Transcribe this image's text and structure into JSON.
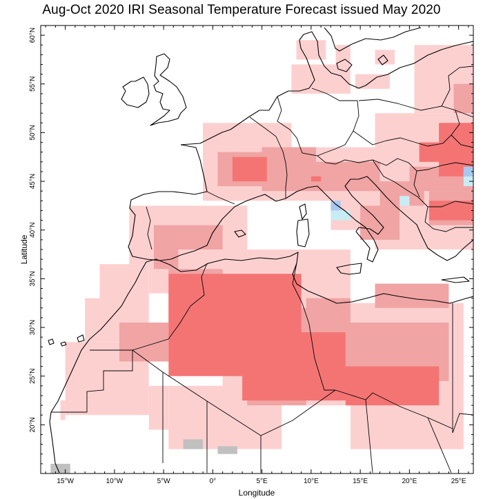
{
  "title": "Aug-Oct 2020 IRI Seasonal Temperature Forecast issued May 2020",
  "axes": {
    "xlabel": "Longitude",
    "ylabel": "Latitude",
    "xlim": [
      -17.5,
      26.5
    ],
    "ylim": [
      15,
      61
    ],
    "xticks": [
      {
        "value": -15,
        "label": "15°W"
      },
      {
        "value": -10,
        "label": "10°W"
      },
      {
        "value": -5,
        "label": "5°W"
      },
      {
        "value": 0,
        "label": "0°"
      },
      {
        "value": 5,
        "label": "5°E"
      },
      {
        "value": 10,
        "label": "10°E"
      },
      {
        "value": 15,
        "label": "15°E"
      },
      {
        "value": 20,
        "label": "20°E"
      },
      {
        "value": 25,
        "label": "25°E"
      }
    ],
    "yticks": [
      {
        "value": 20,
        "label": "20°N"
      },
      {
        "value": 25,
        "label": "25°N"
      },
      {
        "value": 30,
        "label": "30°N"
      },
      {
        "value": 35,
        "label": "35°N"
      },
      {
        "value": 40,
        "label": "40°N"
      },
      {
        "value": 45,
        "label": "45°N"
      },
      {
        "value": 50,
        "label": "50°N"
      },
      {
        "value": 55,
        "label": "55°N"
      },
      {
        "value": 60,
        "label": "60°N"
      }
    ]
  },
  "colors": {
    "above_low": "#fdd0d0",
    "above_mid": "#f0a4a4",
    "above_high": "#f47474",
    "below_low": "#c8ecf4",
    "below_mid": "#a8c8f0",
    "dry_mask": "#c0c0c0",
    "coast": "#000000"
  },
  "layers": [
    {
      "category": "above_low",
      "cells": [
        [
          -6.5,
          1,
          33.5,
          38
        ],
        [
          -11.5,
          -6.5,
          28.5,
          36.5
        ],
        [
          -13,
          -11.5,
          28.5,
          33
        ],
        [
          -15,
          -6.5,
          21,
          28.5
        ],
        [
          -15.5,
          -15,
          20.5,
          22.5
        ],
        [
          -6.5,
          -4.5,
          19.5,
          24
        ],
        [
          -4.5,
          7,
          17.5,
          24
        ],
        [
          1,
          14,
          22,
          38
        ],
        [
          14,
          25.5,
          17.5,
          32.5
        ],
        [
          -8.5,
          3.5,
          36.5,
          42.5
        ],
        [
          -1,
          8,
          43,
          51
        ],
        [
          8,
          17.5,
          43,
          48.5
        ],
        [
          12,
          20,
          40,
          46.5
        ],
        [
          16.5,
          26.5,
          38,
          52
        ],
        [
          20.5,
          26.5,
          52,
          59
        ],
        [
          14.5,
          18,
          54.5,
          56
        ],
        [
          8,
          14,
          54,
          57
        ],
        [
          8.5,
          11.5,
          57.5,
          59.5
        ],
        [
          12.5,
          14,
          57,
          59
        ],
        [
          16.5,
          18.5,
          57,
          58.5
        ],
        [
          1,
          5.5,
          48.5,
          50.5
        ]
      ]
    },
    {
      "category": "above_mid",
      "cells": [
        [
          -6,
          1,
          38,
          40.5
        ],
        [
          -6,
          -3.5,
          36,
          38
        ],
        [
          -4.5,
          1,
          30,
          36
        ],
        [
          -9.5,
          -4.5,
          26.5,
          30.5
        ],
        [
          3.5,
          9.5,
          22,
          32
        ],
        [
          9.5,
          14,
          23,
          33
        ],
        [
          14,
          24,
          24.5,
          30.5
        ],
        [
          16.5,
          24,
          32,
          34.5
        ],
        [
          5,
          10.5,
          44,
          48.5
        ],
        [
          0.5,
          6,
          44.5,
          48
        ],
        [
          10.5,
          17,
          44,
          47
        ],
        [
          20,
          26.5,
          44,
          46.5
        ],
        [
          22,
          26.5,
          40.5,
          44
        ],
        [
          15,
          19,
          39,
          42.5
        ],
        [
          17,
          21.5,
          42.5,
          45
        ],
        [
          24.5,
          26.5,
          52,
          55
        ]
      ]
    },
    {
      "category": "above_high",
      "cells": [
        [
          -4.5,
          9,
          25,
          35.5
        ],
        [
          9,
          13.5,
          25.5,
          29.5
        ],
        [
          3,
          14,
          22.5,
          26
        ],
        [
          13.5,
          23,
          22,
          26
        ],
        [
          4,
          6,
          23,
          24
        ],
        [
          8,
          13,
          23,
          26.5
        ],
        [
          17.5,
          22,
          22.5,
          24.5
        ],
        [
          2,
          5.5,
          45,
          47.5
        ],
        [
          23,
          26.5,
          45.5,
          51
        ],
        [
          21,
          25,
          47,
          49
        ],
        [
          22,
          26.5,
          41,
          43
        ],
        [
          10,
          11,
          45,
          45.5
        ]
      ]
    },
    {
      "category": "below_low",
      "cells": [
        [
          12,
          14,
          41,
          42
        ],
        [
          19,
          20,
          42.5,
          43.5
        ],
        [
          25.5,
          26.5,
          44.5,
          46
        ]
      ]
    },
    {
      "category": "below_mid",
      "cells": [
        [
          12,
          13,
          42,
          43
        ],
        [
          25.5,
          26.5,
          45.5,
          46.5
        ]
      ]
    },
    {
      "category": "dry_mask",
      "cells": [
        [
          -3,
          -1,
          17.5,
          18.5
        ],
        [
          0.5,
          2.5,
          17,
          17.8
        ],
        [
          -16.5,
          -14.5,
          15,
          16
        ]
      ]
    }
  ]
}
